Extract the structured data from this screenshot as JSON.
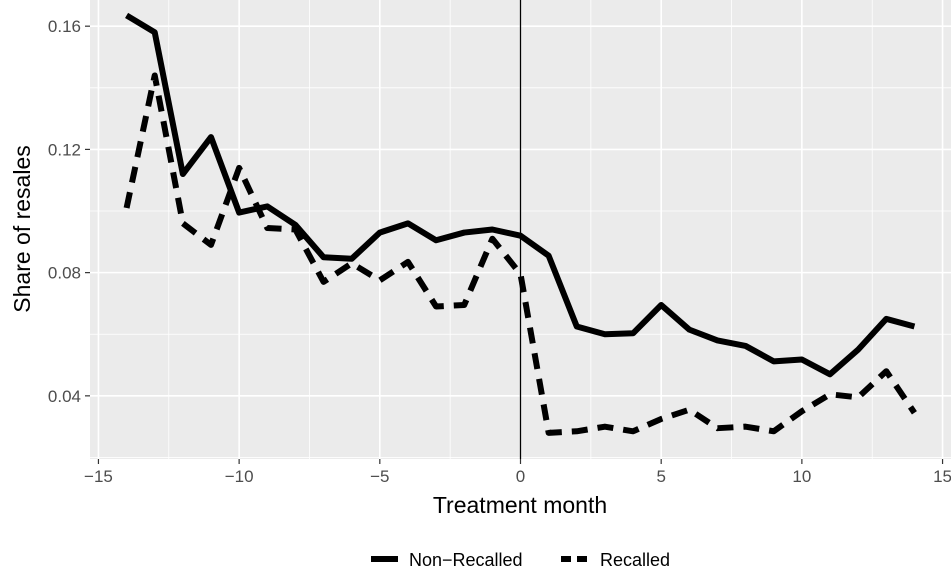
{
  "chart_data": {
    "type": "line",
    "title": "",
    "xlabel": "Treatment month",
    "ylabel": "Share of resales",
    "xlim": [
      -15.3,
      15.3
    ],
    "ylim": [
      0.0195,
      0.1685
    ],
    "x_ticks": [
      -15,
      -10,
      -5,
      0,
      5,
      10,
      15
    ],
    "x_tick_labels": [
      "−15",
      "−10",
      "−5",
      "0",
      "5",
      "10",
      "15"
    ],
    "y_ticks": [
      0.04,
      0.08,
      0.12,
      0.16
    ],
    "y_tick_labels": [
      "0.04",
      "0.08",
      "0.12",
      "0.16"
    ],
    "grid": true,
    "legend_position": "bottom",
    "vline_x": 0,
    "x": [
      -14,
      -13,
      -12,
      -11,
      -10,
      -9,
      -8,
      -7,
      -6,
      -5,
      -4,
      -3,
      -2,
      -1,
      0,
      1,
      2,
      3,
      4,
      5,
      6,
      7,
      8,
      9,
      10,
      11,
      12,
      13,
      14
    ],
    "series": [
      {
        "name": "Non−Recalled",
        "line_style": "solid",
        "color": "#000000",
        "values": [
          0.1635,
          0.158,
          0.112,
          0.124,
          0.0995,
          0.1015,
          0.0955,
          0.085,
          0.0845,
          0.093,
          0.096,
          0.0905,
          0.093,
          0.094,
          0.092,
          0.0855,
          0.0625,
          0.06,
          0.0603,
          0.0695,
          0.0615,
          0.058,
          0.0562,
          0.0512,
          0.0518,
          0.047,
          0.055,
          0.065,
          0.0625
        ]
      },
      {
        "name": "Recalled",
        "line_style": "dashed",
        "color": "#000000",
        "values": [
          0.101,
          0.144,
          0.096,
          0.089,
          0.114,
          0.0945,
          0.094,
          0.077,
          0.083,
          0.0775,
          0.0835,
          0.069,
          0.0695,
          0.091,
          0.0795,
          0.028,
          0.0285,
          0.03,
          0.0285,
          0.0325,
          0.0355,
          0.0295,
          0.03,
          0.0285,
          0.035,
          0.0405,
          0.0395,
          0.048,
          0.0345
        ]
      }
    ]
  }
}
